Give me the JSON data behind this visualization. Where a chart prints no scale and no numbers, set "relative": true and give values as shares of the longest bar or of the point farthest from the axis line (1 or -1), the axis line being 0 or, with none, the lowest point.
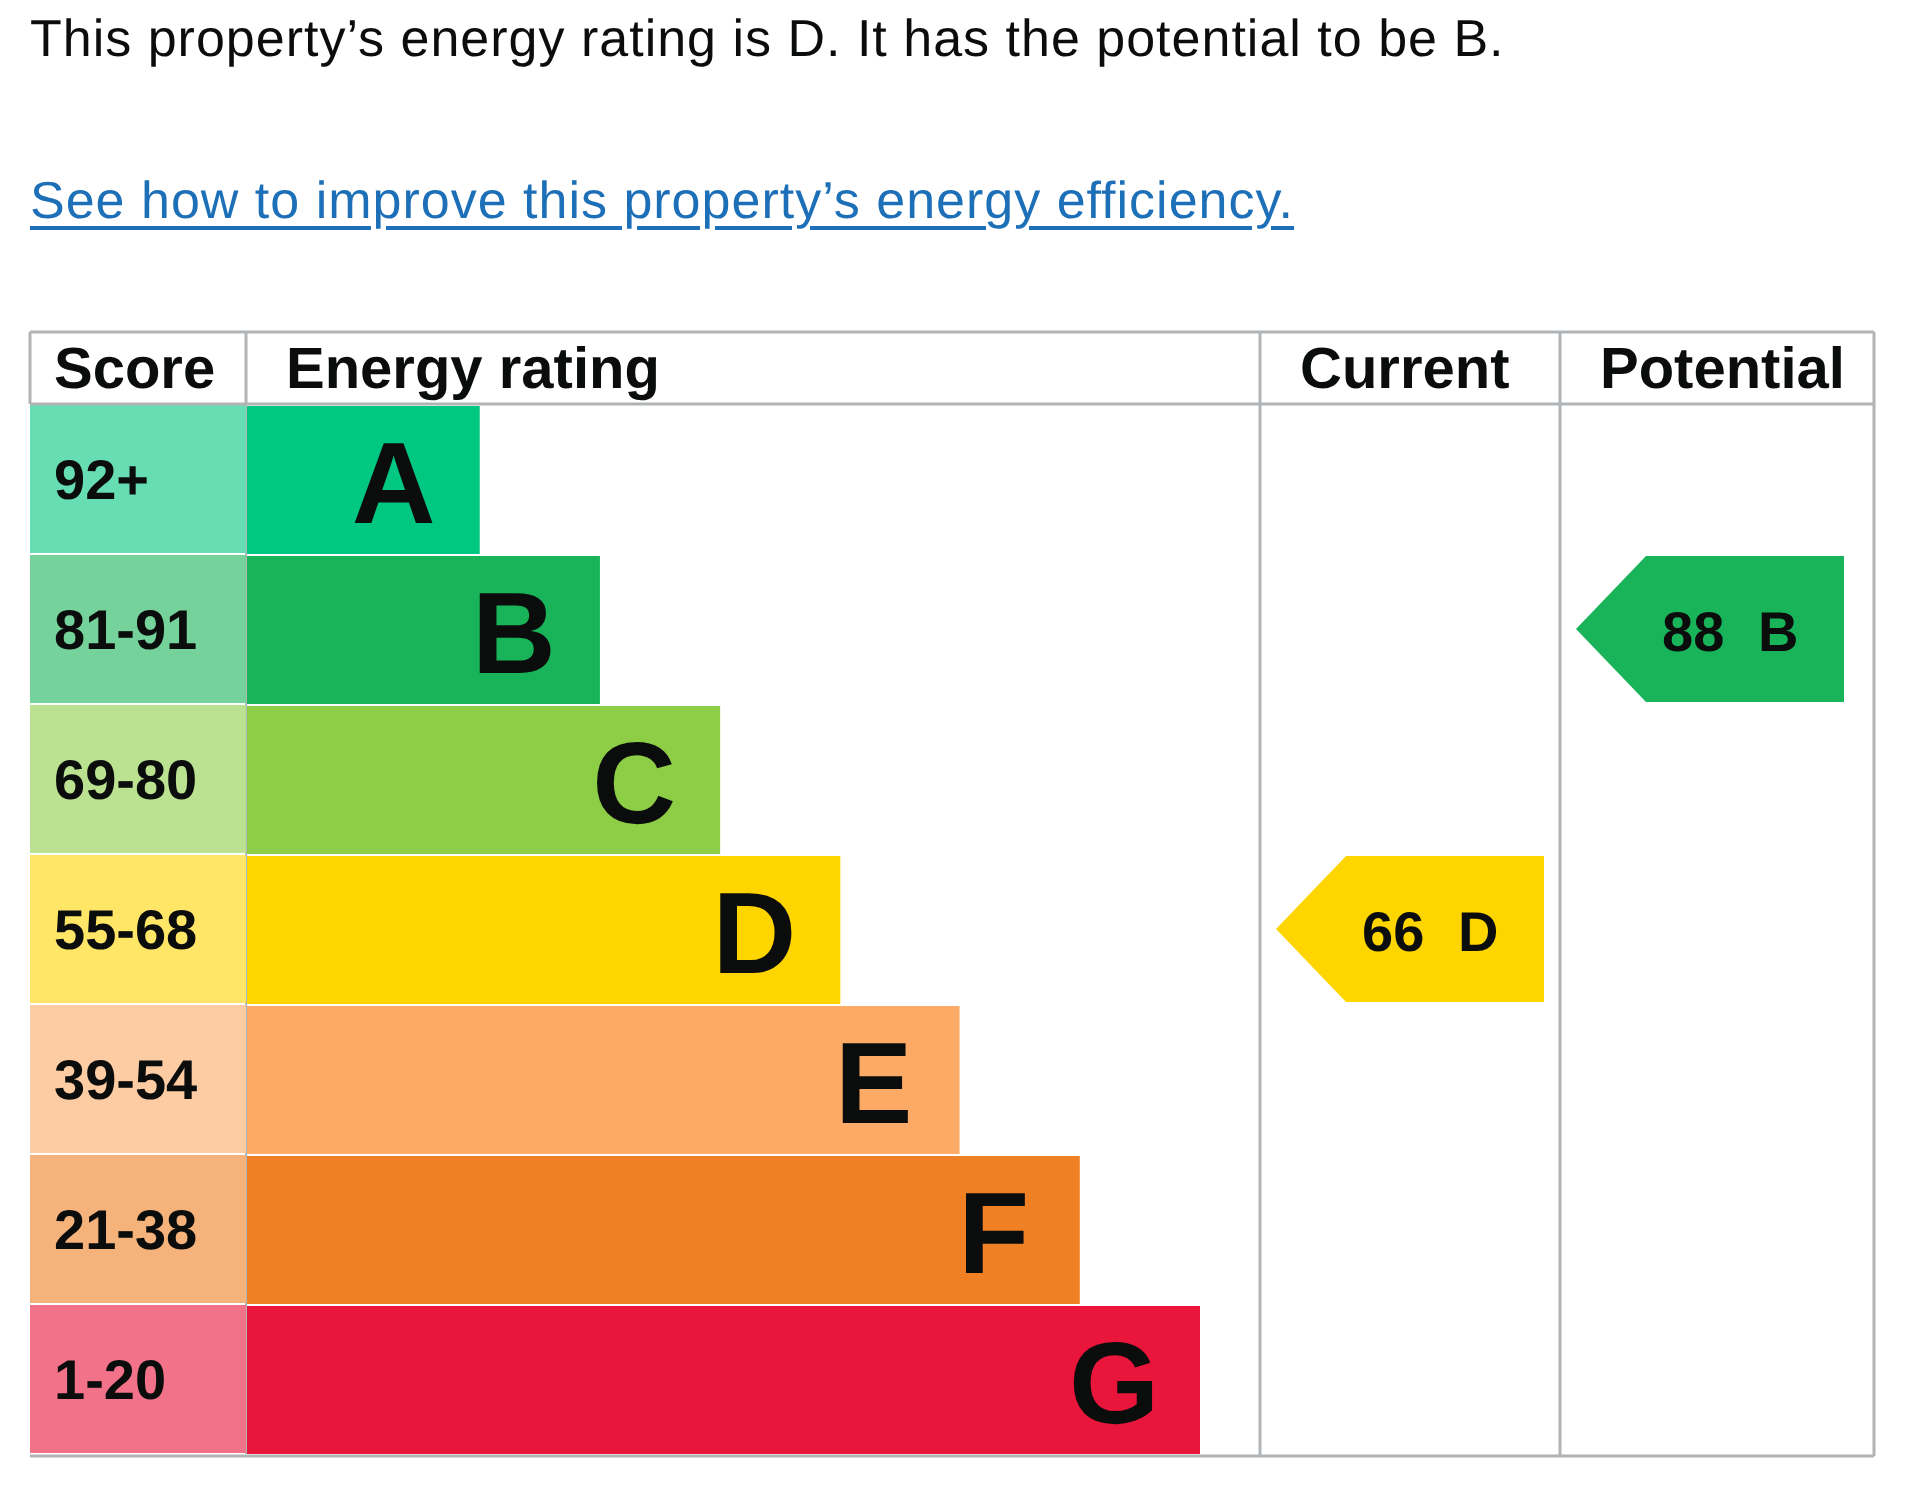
{
  "chart_data": [
    {
      "type": "bar",
      "orientation": "horizontal",
      "relative": true,
      "title": "This property’s energy rating is D. It has the potential to be B.",
      "subtitle": "See how to improve this property’s energy efficiency.",
      "ylabel": "Score",
      "xlabel": "Energy rating",
      "categories": [
        "92+",
        "81-91",
        "69-80",
        "55-68",
        "39-54",
        "21-38",
        "1-20"
      ],
      "values": [
        0.245,
        0.371,
        0.497,
        0.623,
        0.748,
        0.874,
        1
      ],
      "colors": [
        "#00c781",
        "#19b459",
        "#8dce46",
        "#ffd500",
        "#fcaa65",
        "#ef8023",
        "#e9153b"
      ],
      "annotations": [
        {
          "text": "A",
          "x": 0.245,
          "y": "92+"
        },
        {
          "text": "B",
          "x": 0.371,
          "y": "81-91"
        },
        {
          "text": "C",
          "x": 0.497,
          "y": "69-80"
        },
        {
          "text": "D",
          "x": 0.623,
          "y": "55-68"
        },
        {
          "text": "E",
          "x": 0.748,
          "y": "39-54"
        },
        {
          "text": "F",
          "x": 0.874,
          "y": "21-38"
        },
        {
          "text": "G",
          "x": 1,
          "y": "1-20"
        }
      ]
    },
    {
      "type": "heatmap",
      "tick_labels": "x",
      "data_labels": true,
      "categories": [
        "Current",
        "Potential"
      ],
      "y_categories": [
        "92+",
        "81-91",
        "69-80",
        "55-68",
        "39-54",
        "21-38",
        "1-20"
      ],
      "cells": [
        [
          null,
          null
        ],
        [
          null,
          88
        ],
        [
          null,
          null
        ],
        [
          66,
          null
        ],
        [
          null,
          null
        ],
        [
          null,
          null
        ],
        [
          null,
          null
        ]
      ],
      "annotations": [
        "B",
        "D"
      ]
    }
  ]
}
